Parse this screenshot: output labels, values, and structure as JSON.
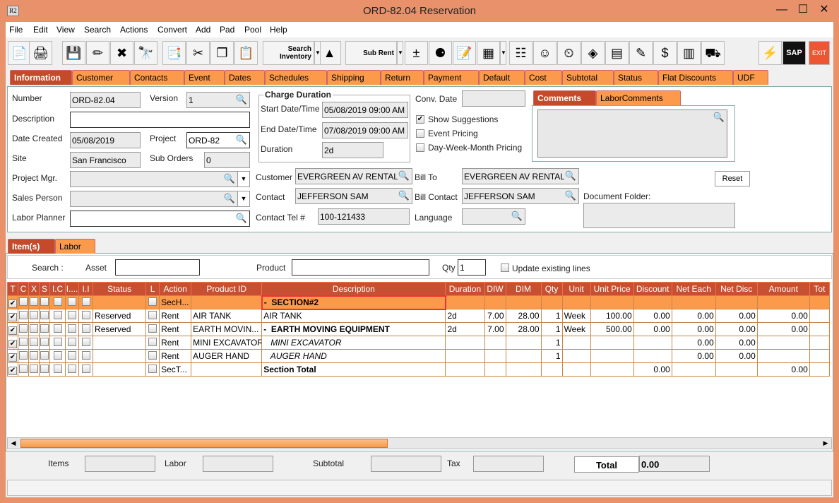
{
  "window": {
    "title": "ORD-82.04 Reservation",
    "app_icon": "R2"
  },
  "menu": [
    "File",
    "Edit",
    "View",
    "Search",
    "Actions",
    "Convert",
    "Add",
    "Pad",
    "Pool",
    "Help"
  ],
  "toolbar": {
    "search_inventory": "Search Inventory",
    "sub_rent": "Sub Rent",
    "sap": "SAP",
    "exit": "EXIT"
  },
  "tabs": [
    "Information",
    "Customer",
    "Contacts",
    "Event",
    "Dates",
    "Schedules",
    "Shipping",
    "Return",
    "Payment",
    "Default",
    "Cost",
    "Subtotal",
    "Status",
    "Flat Discounts",
    "UDF"
  ],
  "info": {
    "number_label": "Number",
    "number": "ORD-82.04",
    "version_label": "Version",
    "version": "1",
    "description_label": "Description",
    "description": "",
    "date_created_label": "Date Created",
    "date_created": "05/08/2019",
    "project_label": "Project",
    "project": "ORD-82",
    "site_label": "Site",
    "site": "San Francisco",
    "sub_orders_label": "Sub Orders",
    "sub_orders": "0",
    "project_mgr_label": "Project Mgr.",
    "project_mgr": "",
    "sales_person_label": "Sales Person",
    "sales_person": "",
    "labor_planner_label": "Labor Planner",
    "labor_planner": "",
    "charge_duration_label": "Charge Duration",
    "start_label": "Start Date/Time",
    "start": "05/08/2019 09:00 AM",
    "end_label": "End Date/Time",
    "end": "07/08/2019 09:00 AM",
    "duration_label": "Duration",
    "duration": "2d",
    "conv_date_label": "Conv. Date",
    "conv_date": "",
    "show_suggestions": "Show Suggestions",
    "event_pricing": "Event Pricing",
    "dwm_pricing": "Day-Week-Month Pricing",
    "customer_label": "Customer",
    "customer": "EVERGREEN AV RENTALS",
    "contact_label": "Contact",
    "contact": "JEFFERSON SAM",
    "contact_tel_label": "Contact Tel #",
    "contact_tel": "100-121433",
    "bill_to_label": "Bill To",
    "bill_to": "EVERGREEN AV RENTALS",
    "bill_contact_label": "Bill Contact",
    "bill_contact": "JEFFERSON SAM",
    "language_label": "Language",
    "language": "",
    "comment_tabs": [
      "Comments",
      "LaborComments"
    ],
    "document_folder_label": "Document Folder:",
    "reset": "Reset"
  },
  "item_tabs": [
    "Item(s)",
    "Labor"
  ],
  "search": {
    "label": "Search :",
    "asset_label": "Asset",
    "product_label": "Product",
    "qty_label": "Qty",
    "qty": "1",
    "update_label": "Update existing lines"
  },
  "table": {
    "headers": [
      "T",
      "C",
      "X",
      "S",
      "I.C",
      "I....",
      "I.I",
      "Status",
      "L",
      "Action",
      "Product ID",
      "Description",
      "Duration",
      "DIW",
      "DIM",
      "Qty",
      "Unit",
      "Unit Price",
      "Discount",
      "Net Each",
      "Net Disc",
      "Amount",
      "Tot"
    ],
    "rows": [
      {
        "status": "",
        "action": "SecH...",
        "product": "",
        "desc": "-  SECTION#2",
        "duration": "",
        "diw": "",
        "dim": "",
        "qty": "",
        "unit": "",
        "price": "",
        "discount": "",
        "net_each": "",
        "net_disc": "",
        "amount": "",
        "style": "sec"
      },
      {
        "status": "Reserved",
        "action": "Rent",
        "product": "AIR TANK",
        "desc": "AIR TANK",
        "duration": "2d",
        "diw": "7.00",
        "dim": "28.00",
        "qty": "1",
        "unit": "Week",
        "price": "100.00",
        "discount": "0.00",
        "net_each": "0.00",
        "net_disc": "0.00",
        "amount": "0.00",
        "style": ""
      },
      {
        "status": "Reserved",
        "action": "Rent",
        "product": "EARTH MOVIN...",
        "desc": "-  EARTH MOVING EQUIPMENT",
        "duration": "2d",
        "diw": "7.00",
        "dim": "28.00",
        "qty": "1",
        "unit": "Week",
        "price": "500.00",
        "discount": "0.00",
        "net_each": "0.00",
        "net_disc": "0.00",
        "amount": "0.00",
        "style": "b"
      },
      {
        "status": "",
        "action": "Rent",
        "product": "MINI EXCAVATOR",
        "desc": "   MINI EXCAVATOR",
        "duration": "",
        "diw": "",
        "dim": "",
        "qty": "1",
        "unit": "",
        "price": "",
        "discount": "",
        "net_each": "0.00",
        "net_disc": "0.00",
        "amount": "",
        "style": "i"
      },
      {
        "status": "",
        "action": "Rent",
        "product": "AUGER HAND",
        "desc": "   AUGER HAND",
        "duration": "",
        "diw": "",
        "dim": "",
        "qty": "1",
        "unit": "",
        "price": "",
        "discount": "",
        "net_each": "0.00",
        "net_disc": "0.00",
        "amount": "",
        "style": "i"
      },
      {
        "status": "",
        "action": "SecT...",
        "product": "",
        "desc": "Section Total",
        "duration": "",
        "diw": "",
        "dim": "",
        "qty": "",
        "unit": "",
        "price": "",
        "discount": "0.00",
        "net_each": "",
        "net_disc": "",
        "amount": "0.00",
        "style": "b"
      }
    ]
  },
  "footer": {
    "items_label": "Items",
    "labor_label": "Labor",
    "subtotal_label": "Subtotal",
    "tax_label": "Tax",
    "total_label": "Total",
    "total": "0.00"
  },
  "colors": {
    "title_bar": "#E8916A",
    "tab": "#FA9A4A",
    "active_tab": "#C44A2A",
    "header": "#C65031"
  }
}
